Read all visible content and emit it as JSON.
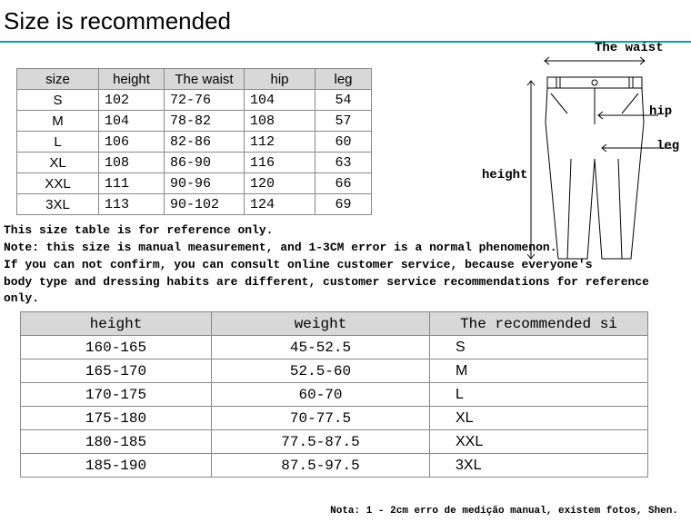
{
  "title": "Size is recommended",
  "sizeTable": {
    "headers": [
      "size",
      "height",
      "The waist",
      "hip",
      "leg"
    ],
    "rows": [
      {
        "size": "S",
        "height": "102",
        "waist": "72-76",
        "hip": "104",
        "leg": "54"
      },
      {
        "size": "M",
        "height": "104",
        "waist": "78-82",
        "hip": "108",
        "leg": "57"
      },
      {
        "size": "L",
        "height": "106",
        "waist": "82-86",
        "hip": "112",
        "leg": "60"
      },
      {
        "size": "XL",
        "height": "108",
        "waist": "86-90",
        "hip": "116",
        "leg": "63"
      },
      {
        "size": "XXL",
        "height": "111",
        "waist": "90-96",
        "hip": "120",
        "leg": "66"
      },
      {
        "size": "3XL",
        "height": "113",
        "waist": "90-102",
        "hip": "124",
        "leg": "69"
      }
    ]
  },
  "diagram": {
    "waist": "The waist",
    "hip": "hip",
    "leg": "leg",
    "height": "height"
  },
  "notes": {
    "l1": "This size table is for reference only.",
    "l2": "Note: this size is manual measurement, and 1-3CM error is a normal phenomenon.",
    "l3": "If you can not confirm, you can consult online customer service, because everyone's",
    "l4": " body type and dressing habits are different, customer service recommendations for reference only."
  },
  "recTable": {
    "headers": [
      "height",
      "weight",
      "The recommended si"
    ],
    "rows": [
      {
        "h": "160-165",
        "w": "45-52.5",
        "s": "S"
      },
      {
        "h": "165-170",
        "w": "52.5-60",
        "s": "M"
      },
      {
        "h": "170-175",
        "w": "60-70",
        "s": "L"
      },
      {
        "h": "175-180",
        "w": "70-77.5",
        "s": "XL"
      },
      {
        "h": "180-185",
        "w": "77.5-87.5",
        "s": "XXL"
      },
      {
        "h": "185-190",
        "w": "87.5-97.5",
        "s": "3XL"
      }
    ]
  },
  "footer": "Nota: 1 - 2cm erro de medição manual, existem fotos, Shen."
}
